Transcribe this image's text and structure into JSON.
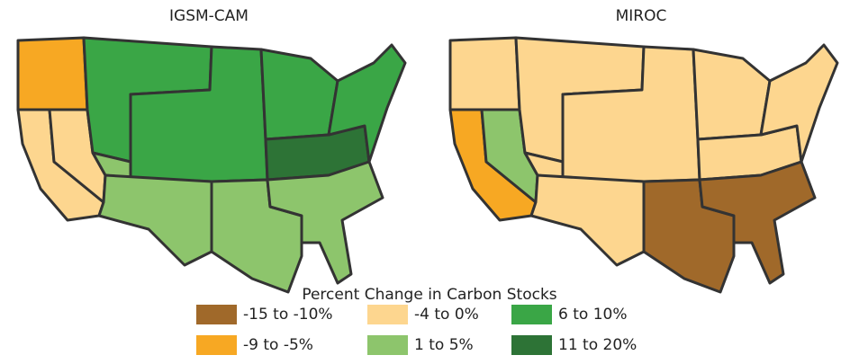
{
  "maps": [
    {
      "title": "IGSM-CAM"
    },
    {
      "title": "MIROC"
    }
  ],
  "legend": {
    "title": "Percent Change in Carbon Stocks",
    "items": [
      {
        "label": "-15 to -10%",
        "color": "#a0692a"
      },
      {
        "label": "-9 to -5%",
        "color": "#f7a823"
      },
      {
        "label": "-4 to 0%",
        "color": "#fdd68f"
      },
      {
        "label": "1 to 5%",
        "color": "#8dc56c"
      },
      {
        "label": "6 to 10%",
        "color": "#3aa646"
      },
      {
        "label": "11 to 20%",
        "color": "#2d7336"
      }
    ]
  }
}
